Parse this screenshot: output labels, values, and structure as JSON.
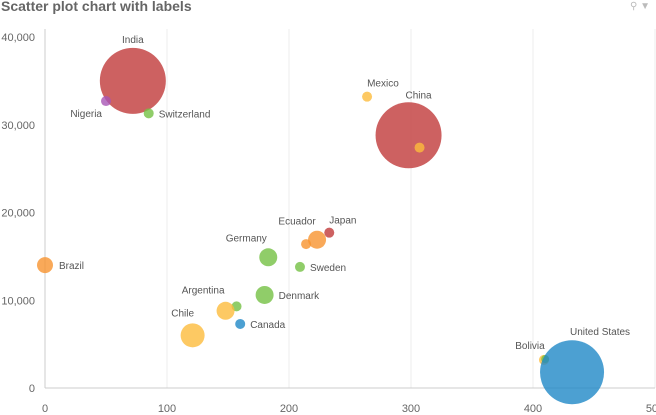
{
  "chart_data": {
    "type": "scatter",
    "title": "Scatter plot chart with labels",
    "xlim": [
      0,
      500
    ],
    "ylim": [
      0,
      40000
    ],
    "x_ticks": [
      "0",
      "100",
      "200",
      "300",
      "400",
      "500"
    ],
    "y_ticks": [
      "0",
      "10,000",
      "20,000",
      "30,000",
      "40,000"
    ],
    "grid": "vertical",
    "points": [
      {
        "label": "India",
        "x": 72,
        "y": 35000,
        "z": 33,
        "color": "#c0393a"
      },
      {
        "label": "Nigeria",
        "x": 50,
        "y": 32700,
        "z": 5,
        "color": "#a855b5"
      },
      {
        "label": "Switzerland",
        "x": 85,
        "y": 31300,
        "z": 5,
        "color": "#74c043"
      },
      {
        "label": "Mexico",
        "x": 264,
        "y": 33200,
        "z": 5,
        "color": "#fdbb3c"
      },
      {
        "label": "China",
        "x": 298,
        "y": 28800,
        "z": 33,
        "color": "#c0393a"
      },
      {
        "label": "",
        "x": 307,
        "y": 27400,
        "z": 5,
        "color": "#fdbb3c"
      },
      {
        "label": "Brazil",
        "x": 0,
        "y": 14000,
        "z": 8,
        "color": "#f7932f"
      },
      {
        "label": "Germany",
        "x": 183,
        "y": 14900,
        "z": 9,
        "color": "#74c043"
      },
      {
        "label": "Ecuador",
        "x": 223,
        "y": 16900,
        "z": 9,
        "color": "#f7932f"
      },
      {
        "label": "",
        "x": 214,
        "y": 16400,
        "z": 5,
        "color": "#f7932f"
      },
      {
        "label": "Japan",
        "x": 233,
        "y": 17700,
        "z": 5,
        "color": "#c0393a"
      },
      {
        "label": "Sweden",
        "x": 209,
        "y": 13800,
        "z": 5,
        "color": "#74c043"
      },
      {
        "label": "Denmark",
        "x": 180,
        "y": 10600,
        "z": 9,
        "color": "#74c043"
      },
      {
        "label": "Argentina",
        "x": 157,
        "y": 9300,
        "z": 5,
        "color": "#74c043"
      },
      {
        "label": "",
        "x": 148,
        "y": 8800,
        "z": 9,
        "color": "#fdbb3c"
      },
      {
        "label": "Canada",
        "x": 160,
        "y": 7300,
        "z": 5,
        "color": "#1f88c7"
      },
      {
        "label": "Chile",
        "x": 121,
        "y": 6000,
        "z": 12,
        "color": "#fdbb3c"
      },
      {
        "label": "Bolivia",
        "x": 409,
        "y": 3200,
        "z": 5,
        "color": "#fdbb3c"
      },
      {
        "label": "",
        "x": 410,
        "y": 3300,
        "z": 4,
        "color": "#74c043"
      },
      {
        "label": "United States",
        "x": 432,
        "y": 1800,
        "z": 32,
        "color": "#1f88c7"
      }
    ]
  },
  "toolbar": {
    "zoom_icon": "magnifier-icon",
    "menu_icon": "dropdown-triangle-icon"
  }
}
